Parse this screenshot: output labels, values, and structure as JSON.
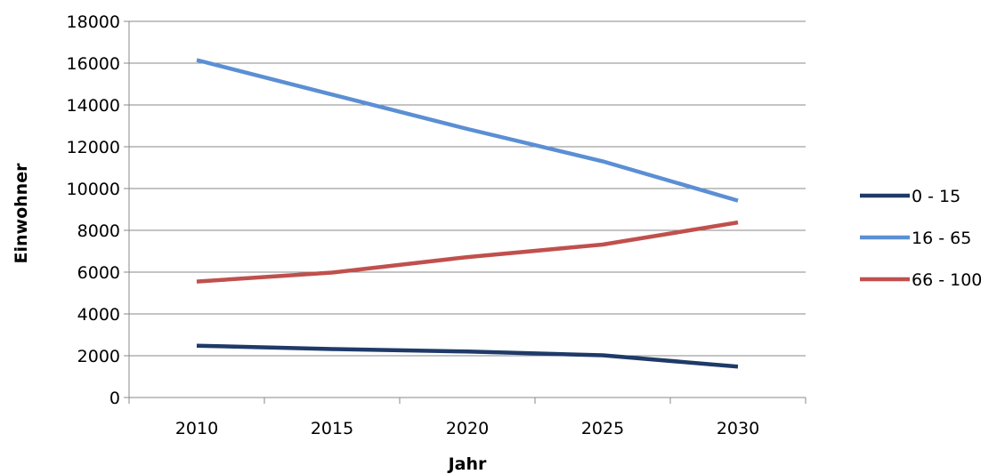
{
  "chart_data": {
    "type": "line",
    "xlabel": "Jahr",
    "ylabel": "Einwohner",
    "categories": [
      "2010",
      "2015",
      "2020",
      "2025",
      "2030"
    ],
    "ylim": [
      0,
      18000
    ],
    "yticks": [
      "0",
      "2000",
      "4000",
      "6000",
      "8000",
      "10000",
      "12000",
      "14000",
      "16000",
      "18000"
    ],
    "grid": "horizontal",
    "legend_position": "right",
    "series": [
      {
        "name": "0 - 15",
        "color": "#1f3a68",
        "values": [
          2480,
          2320,
          2200,
          2020,
          1480
        ]
      },
      {
        "name": "16 - 65",
        "color": "#5b8fd4",
        "values": [
          16150,
          14500,
          12850,
          11300,
          9420
        ]
      },
      {
        "name": "66 - 100",
        "color": "#c0504d",
        "values": [
          5550,
          5980,
          6720,
          7320,
          8380
        ]
      }
    ]
  }
}
